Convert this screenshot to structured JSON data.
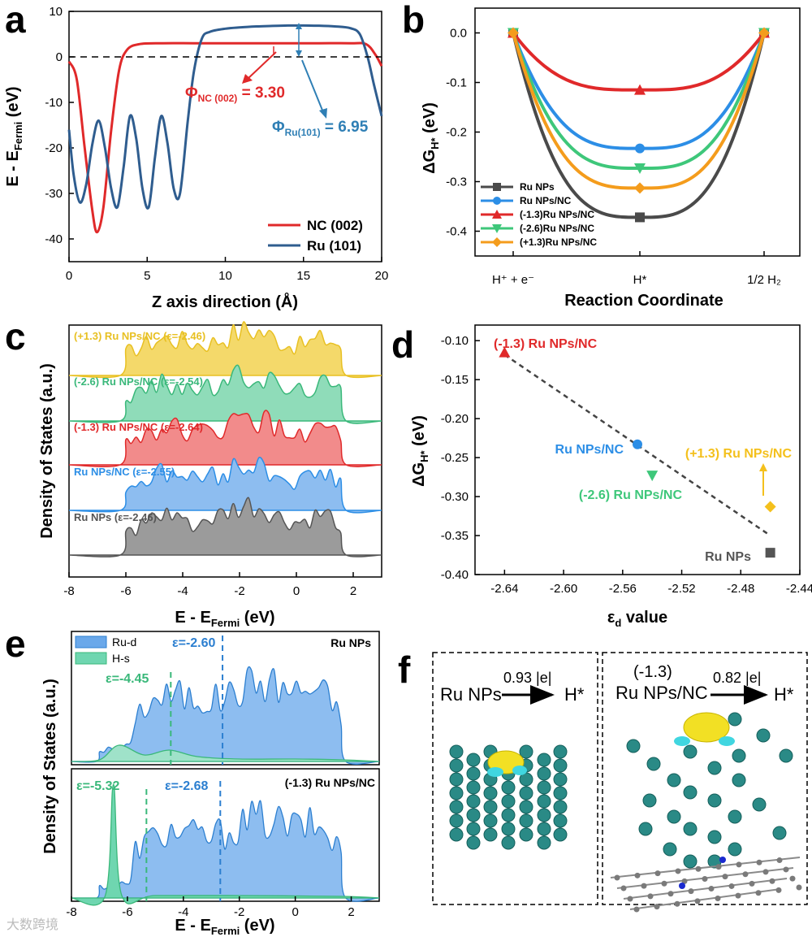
{
  "panels": {
    "a": {
      "label": "a"
    },
    "b": {
      "label": "b"
    },
    "c": {
      "label": "c"
    },
    "d": {
      "label": "d"
    },
    "e": {
      "label": "e"
    },
    "f": {
      "label": "f"
    }
  },
  "chart_data": [
    {
      "panel": "a",
      "type": "line",
      "xlabel": "Z axis direction (Å)",
      "ylabel": "E - E",
      "ylabel_sub": "Fermi",
      "ylabel_unit": " (eV)",
      "xlim": [
        0,
        20
      ],
      "ylim": [
        -45,
        10
      ],
      "xticks": [
        0,
        5,
        10,
        15,
        20
      ],
      "yticks": [
        10,
        0,
        -10,
        -20,
        -30,
        -40
      ],
      "series": [
        {
          "name": "NC (002)",
          "color": "#e0292a",
          "x": [
            0,
            0.5,
            1,
            1.5,
            1.8,
            2.2,
            2.7,
            3.2,
            3.7,
            4.5,
            6,
            8,
            10,
            12,
            14,
            16,
            18,
            19,
            19.6,
            20
          ],
          "y": [
            -1,
            -5,
            -20,
            -34,
            -38.5,
            -33,
            -16,
            -3,
            1.5,
            2.8,
            3,
            3,
            3,
            3,
            3,
            3,
            3,
            2.8,
            0.5,
            -2
          ]
        },
        {
          "name": "Ru (101)",
          "color": "#2f5d8f",
          "x": [
            0,
            0.3,
            0.7,
            1.1,
            1.5,
            1.9,
            2.3,
            2.7,
            3.1,
            3.5,
            3.9,
            4.3,
            4.7,
            5.1,
            5.5,
            5.9,
            6.3,
            6.7,
            7.1,
            7.6,
            8,
            8.5,
            9,
            10,
            11,
            12,
            13,
            14,
            15,
            16,
            17,
            18,
            18.6,
            19.1,
            19.5,
            20
          ],
          "y": [
            -16,
            -26,
            -32,
            -28,
            -19,
            -14,
            -20,
            -29,
            -33,
            -24,
            -13,
            -18,
            -29,
            -33,
            -22,
            -13,
            -19,
            -29,
            -30,
            -14,
            -3,
            4,
            5.5,
            6.2,
            6.5,
            6.7,
            6.8,
            6.9,
            6.9,
            6.85,
            6.7,
            6.3,
            5,
            0,
            -6,
            -13
          ]
        }
      ],
      "annotations": [
        {
          "text": "Φ",
          "sub": "NC (002)",
          "value": " = 3.30",
          "color": "#e0292a"
        },
        {
          "text": "Φ",
          "sub": "Ru(101)",
          "value": " = 6.95",
          "color": "#2f7fb5"
        }
      ]
    },
    {
      "panel": "b",
      "type": "line",
      "xlabel": "Reaction Coordinate",
      "ylabel": "ΔG",
      "ylabel_sub": "H*",
      "ylabel_unit": " (eV)",
      "ylim": [
        -0.45,
        0.05
      ],
      "yticks": [
        0.0,
        -0.1,
        -0.2,
        -0.3,
        -0.4
      ],
      "categories": [
        "H⁺ + e⁻",
        "H*",
        "1/2 H₂"
      ],
      "series": [
        {
          "name": "Ru NPs",
          "color": "#4a4a4a",
          "marker": "square",
          "values": [
            0,
            -0.372,
            0
          ]
        },
        {
          "name": "Ru NPs/NC",
          "color": "#2c8ee6",
          "marker": "circle",
          "values": [
            0,
            -0.233,
            0
          ]
        },
        {
          "name": "(-1.3)Ru NPs/NC",
          "color": "#e0292a",
          "marker": "triangle-up",
          "values": [
            0,
            -0.115,
            0
          ]
        },
        {
          "name": "(-2.6)Ru NPs/NC",
          "color": "#3ec77a",
          "marker": "triangle-down",
          "values": [
            0,
            -0.273,
            0
          ]
        },
        {
          "name": "(+1.3)Ru NPs/NC",
          "color": "#f49c1c",
          "marker": "diamond",
          "values": [
            0,
            -0.313,
            0
          ]
        }
      ]
    },
    {
      "panel": "c",
      "type": "area",
      "xlabel": "E - E",
      "xlabel_sub": "Fermi",
      "xlabel_unit": " (eV)",
      "ylabel": "Density of States (a.u.)",
      "xlim": [
        -8,
        3
      ],
      "xticks": [
        -8,
        -6,
        -4,
        -2,
        0,
        2
      ],
      "series": [
        {
          "name": "(+1.3) Ru NPs/NC (ε=-2.46)",
          "color": "#e8c022",
          "fill": "#f4d96a"
        },
        {
          "name": "(-2.6) Ru NPs/NC (ε=-2.54)",
          "color": "#3ab87a",
          "fill": "#8fdcb9"
        },
        {
          "name": "(-1.3) Ru NPs/NC (ε=-2.64)",
          "color": "#e0292a",
          "fill": "#f28b8b"
        },
        {
          "name": "Ru NPs/NC (ε=-2.55)",
          "color": "#2c8ee6",
          "fill": "#8dbdf0"
        },
        {
          "name": "Ru NPs (ε=-2.46)",
          "color": "#555555",
          "fill": "#9b9b9b"
        }
      ]
    },
    {
      "panel": "d",
      "type": "scatter",
      "xlabel": "ε",
      "xlabel_sub": "d",
      "xlabel_unit": " value",
      "ylabel": "ΔG",
      "ylabel_sub": "H*",
      "ylabel_unit": " (eV)",
      "xlim": [
        -2.66,
        -2.44
      ],
      "ylim": [
        -0.4,
        -0.08
      ],
      "xticks": [
        -2.64,
        -2.6,
        -2.56,
        -2.52,
        -2.48,
        -2.44
      ],
      "yticks": [
        -0.1,
        -0.15,
        -0.2,
        -0.25,
        -0.3,
        -0.35,
        -0.4
      ],
      "points": [
        {
          "name": "(-1.3) Ru NPs/NC",
          "x": -2.64,
          "y": -0.115,
          "color": "#e0292a",
          "marker": "triangle-up"
        },
        {
          "name": "Ru NPs/NC",
          "x": -2.55,
          "y": -0.233,
          "color": "#2c8ee6",
          "marker": "circle"
        },
        {
          "name": "(-2.6) Ru NPs/NC",
          "x": -2.54,
          "y": -0.273,
          "color": "#3ec77a",
          "marker": "triangle-down"
        },
        {
          "name": "(+1.3) Ru NPs/NC",
          "x": -2.46,
          "y": -0.313,
          "color": "#f4c01c",
          "marker": "diamond"
        },
        {
          "name": "Ru NPs",
          "x": -2.46,
          "y": -0.372,
          "color": "#555555",
          "marker": "square"
        }
      ],
      "fit_line": {
        "x": [
          -2.64,
          -2.46
        ],
        "y": [
          -0.118,
          -0.35
        ]
      }
    },
    {
      "panel": "e",
      "type": "area",
      "xlabel": "E - E",
      "xlabel_sub": "Fermi",
      "xlabel_unit": " (eV)",
      "ylabel": "Density of States (a.u.)",
      "xlim": [
        -8,
        3
      ],
      "xticks": [
        -8,
        -6,
        -4,
        -2,
        0,
        2
      ],
      "legend": [
        {
          "name": "Ru-d",
          "color": "#6aa8ea"
        },
        {
          "name": "H-s",
          "color": "#6fd6b0"
        }
      ],
      "subplots": [
        {
          "title": "Ru NPs",
          "eps_h": "ε=-4.45",
          "eps_h_x": -4.45,
          "eps_d": "ε=-2.60",
          "eps_d_x": -2.6
        },
        {
          "title": "(-1.3) Ru NPs/NC",
          "eps_h": "ε=-5.32",
          "eps_h_x": -5.32,
          "eps_d": "ε=-2.68",
          "eps_d_x": -2.68
        }
      ]
    }
  ],
  "panel_f": {
    "left": {
      "species": "Ru NPs",
      "transfer": "0.93 |e|",
      "target": "H*"
    },
    "right": {
      "species_line1": "(-1.3)",
      "species_line2": "Ru NPs/NC",
      "transfer": "0.82 |e|",
      "target": "H*"
    }
  },
  "watermark": "大数跨境"
}
